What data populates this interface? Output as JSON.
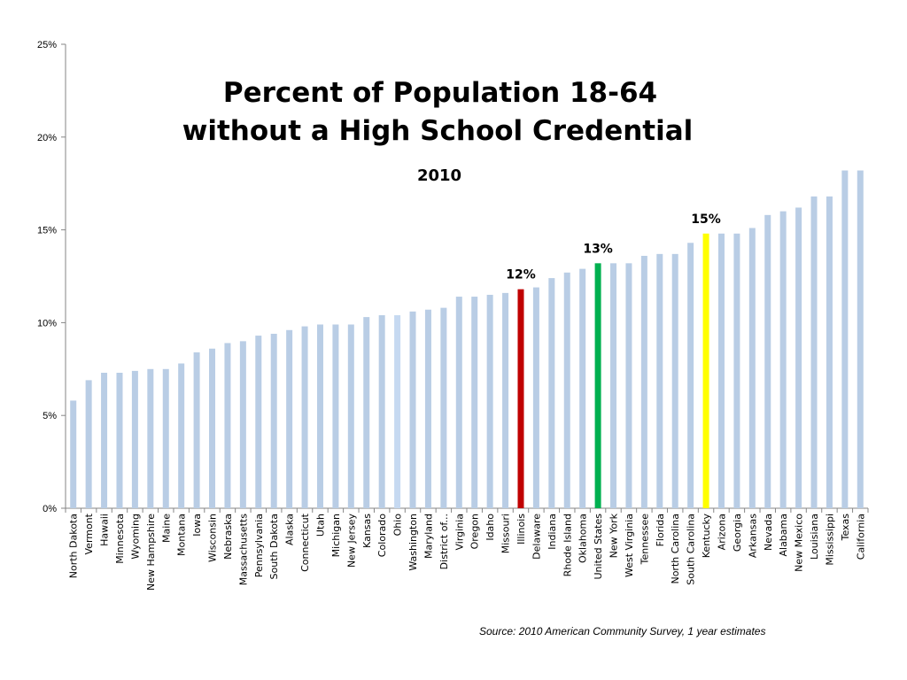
{
  "chart_data": {
    "type": "bar",
    "title": [
      "Percent of Population 18-64",
      "without a High School Credential"
    ],
    "subtitle": "2010",
    "xlabel": "",
    "ylabel": "",
    "ylim": [
      0,
      25
    ],
    "yticks": [
      "0%",
      "5%",
      "10%",
      "15%",
      "20%",
      "25%"
    ],
    "grid": false,
    "categories": [
      "North Dakota",
      "Vermont",
      "Hawaii",
      "Minnesota",
      "Wyoming",
      "New Hampshire",
      "Maine",
      "Montana",
      "Iowa",
      "Wisconsin",
      "Nebraska",
      "Massachusetts",
      "Pennsylvania",
      "South Dakota",
      "Alaska",
      "Connecticut",
      "Utah",
      "Michigan",
      "New Jersey",
      "Kansas",
      "Colorado",
      "Ohio",
      "Washington",
      "Maryland",
      "District of...",
      "Virginia",
      "Oregon",
      "Idaho",
      "Missouri",
      "Illinois",
      "Delaware",
      "Indiana",
      "Rhode Island",
      "Oklahoma",
      "United States",
      "New York",
      "West Virginia",
      "Tennessee",
      "Florida",
      "North Carolina",
      "South Carolina",
      "Kentucky",
      "Arizona",
      "Georgia",
      "Arkansas",
      "Nevada",
      "Alabama",
      "New Mexico",
      "Louisiana",
      "Mississippi",
      "Texas",
      "California"
    ],
    "values": [
      5.8,
      6.9,
      7.3,
      7.3,
      7.4,
      7.5,
      7.5,
      7.8,
      8.4,
      8.6,
      8.9,
      9.0,
      9.3,
      9.4,
      9.6,
      9.8,
      9.9,
      9.9,
      9.9,
      10.3,
      10.4,
      10.4,
      10.6,
      10.7,
      10.8,
      11.4,
      11.4,
      11.5,
      11.6,
      11.8,
      11.9,
      12.4,
      12.7,
      12.9,
      13.2,
      13.2,
      13.2,
      13.6,
      13.7,
      13.7,
      14.3,
      14.8,
      14.8,
      14.8,
      15.1,
      15.8,
      16.0,
      16.2,
      16.8,
      16.8,
      18.2,
      18.2
    ],
    "colors": {
      "default": "#b9cde5",
      "Ohio": "#c6d9f1",
      "Illinois": "#c00000",
      "United States": "#00b050",
      "Kentucky": "#ffff00"
    },
    "data_labels": [
      {
        "category": "Illinois",
        "text": "12%"
      },
      {
        "category": "United States",
        "text": "13%"
      },
      {
        "category": "Kentucky",
        "text": "15%"
      }
    ]
  },
  "source": "Source:  2010 American Community Survey, 1 year estimates"
}
